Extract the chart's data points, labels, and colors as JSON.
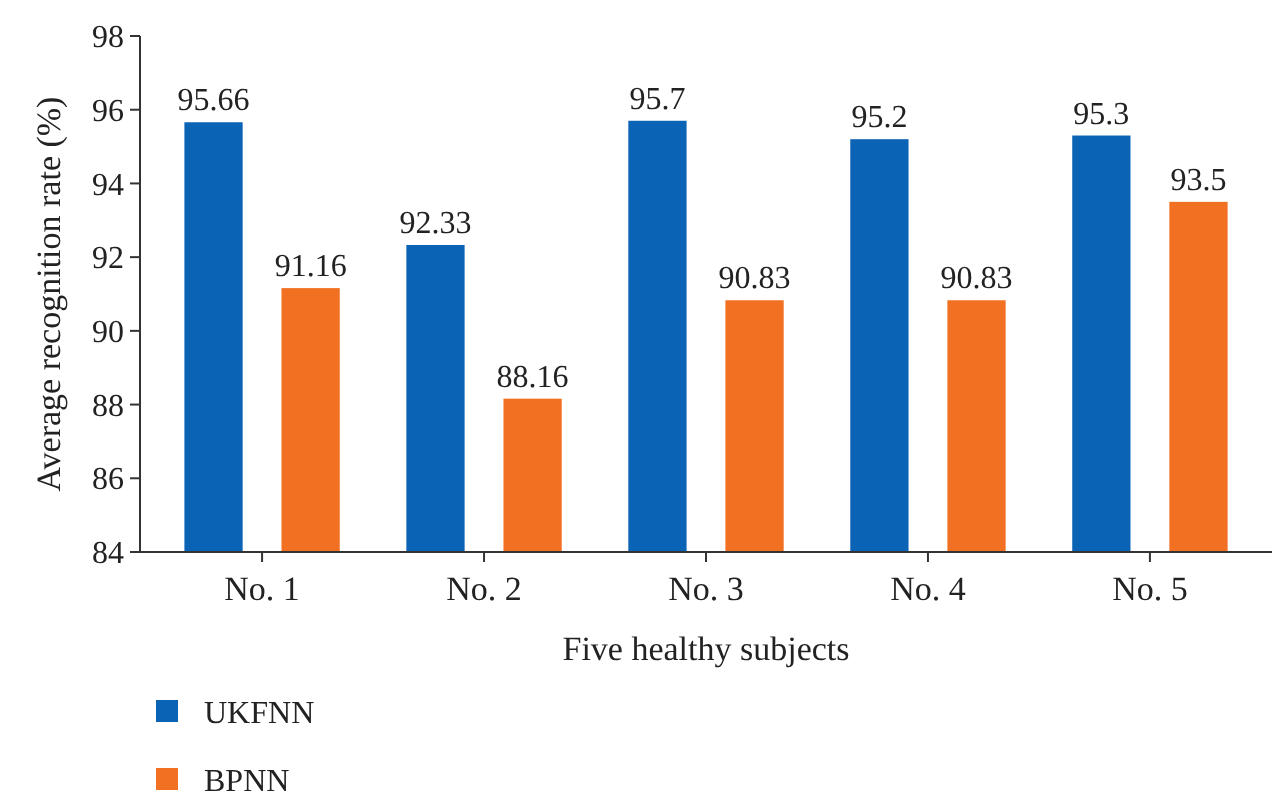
{
  "chart_data": {
    "type": "bar",
    "xlabel": "Five healthy subjects",
    "ylabel": "Average recognition rate (%)",
    "categories": [
      "No. 1",
      "No. 2",
      "No. 3",
      "No. 4",
      "No. 5"
    ],
    "series": [
      {
        "name": "UKFNN",
        "color": "#0b63b5",
        "values": [
          95.66,
          92.33,
          95.7,
          95.2,
          95.3
        ]
      },
      {
        "name": "BPNN",
        "color": "#f27022",
        "values": [
          91.16,
          88.16,
          90.83,
          90.83,
          93.5
        ]
      }
    ],
    "ylim": [
      84,
      98
    ],
    "yticks": [
      84,
      86,
      88,
      90,
      92,
      94,
      96,
      98
    ],
    "data_labels": true,
    "legend": "bottom left",
    "grid": false
  }
}
